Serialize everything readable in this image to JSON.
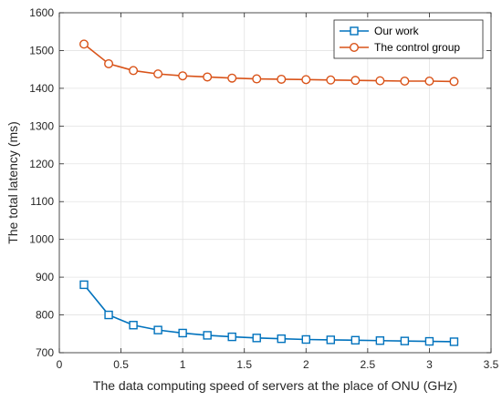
{
  "chart_data": {
    "type": "line",
    "title": "",
    "xlabel": "The data computing speed of servers at the place of ONU (GHz)",
    "ylabel": "The total latency (ms)",
    "xlim": [
      0,
      3.5
    ],
    "ylim": [
      700,
      1600
    ],
    "xticks": [
      0,
      0.5,
      1,
      1.5,
      2,
      2.5,
      3,
      3.5
    ],
    "xtick_labels": [
      "0",
      "0.5",
      "1",
      "1.5",
      "2",
      "2.5",
      "3",
      "3.5"
    ],
    "yticks": [
      700,
      800,
      900,
      1000,
      1100,
      1200,
      1300,
      1400,
      1500,
      1600
    ],
    "ytick_labels": [
      "700",
      "800",
      "900",
      "1000",
      "1100",
      "1200",
      "1300",
      "1400",
      "1500",
      "1600"
    ],
    "grid": true,
    "legend_position": "top-right",
    "x": [
      0.2,
      0.4,
      0.6,
      0.8,
      1.0,
      1.2,
      1.4,
      1.6,
      1.8,
      2.0,
      2.2,
      2.4,
      2.6,
      2.8,
      3.0,
      3.2
    ],
    "series": [
      {
        "name": "Our work",
        "color": "#0072BD",
        "marker": "square",
        "values": [
          880,
          800,
          773,
          760,
          752,
          746,
          742,
          739,
          737,
          735,
          734,
          733,
          732,
          731,
          730,
          729
        ]
      },
      {
        "name": "The control group",
        "color": "#D95319",
        "marker": "circle",
        "values": [
          1517,
          1465,
          1447,
          1438,
          1433,
          1430,
          1427,
          1425,
          1424,
          1423,
          1422,
          1421,
          1420,
          1419,
          1419,
          1418
        ]
      }
    ]
  }
}
